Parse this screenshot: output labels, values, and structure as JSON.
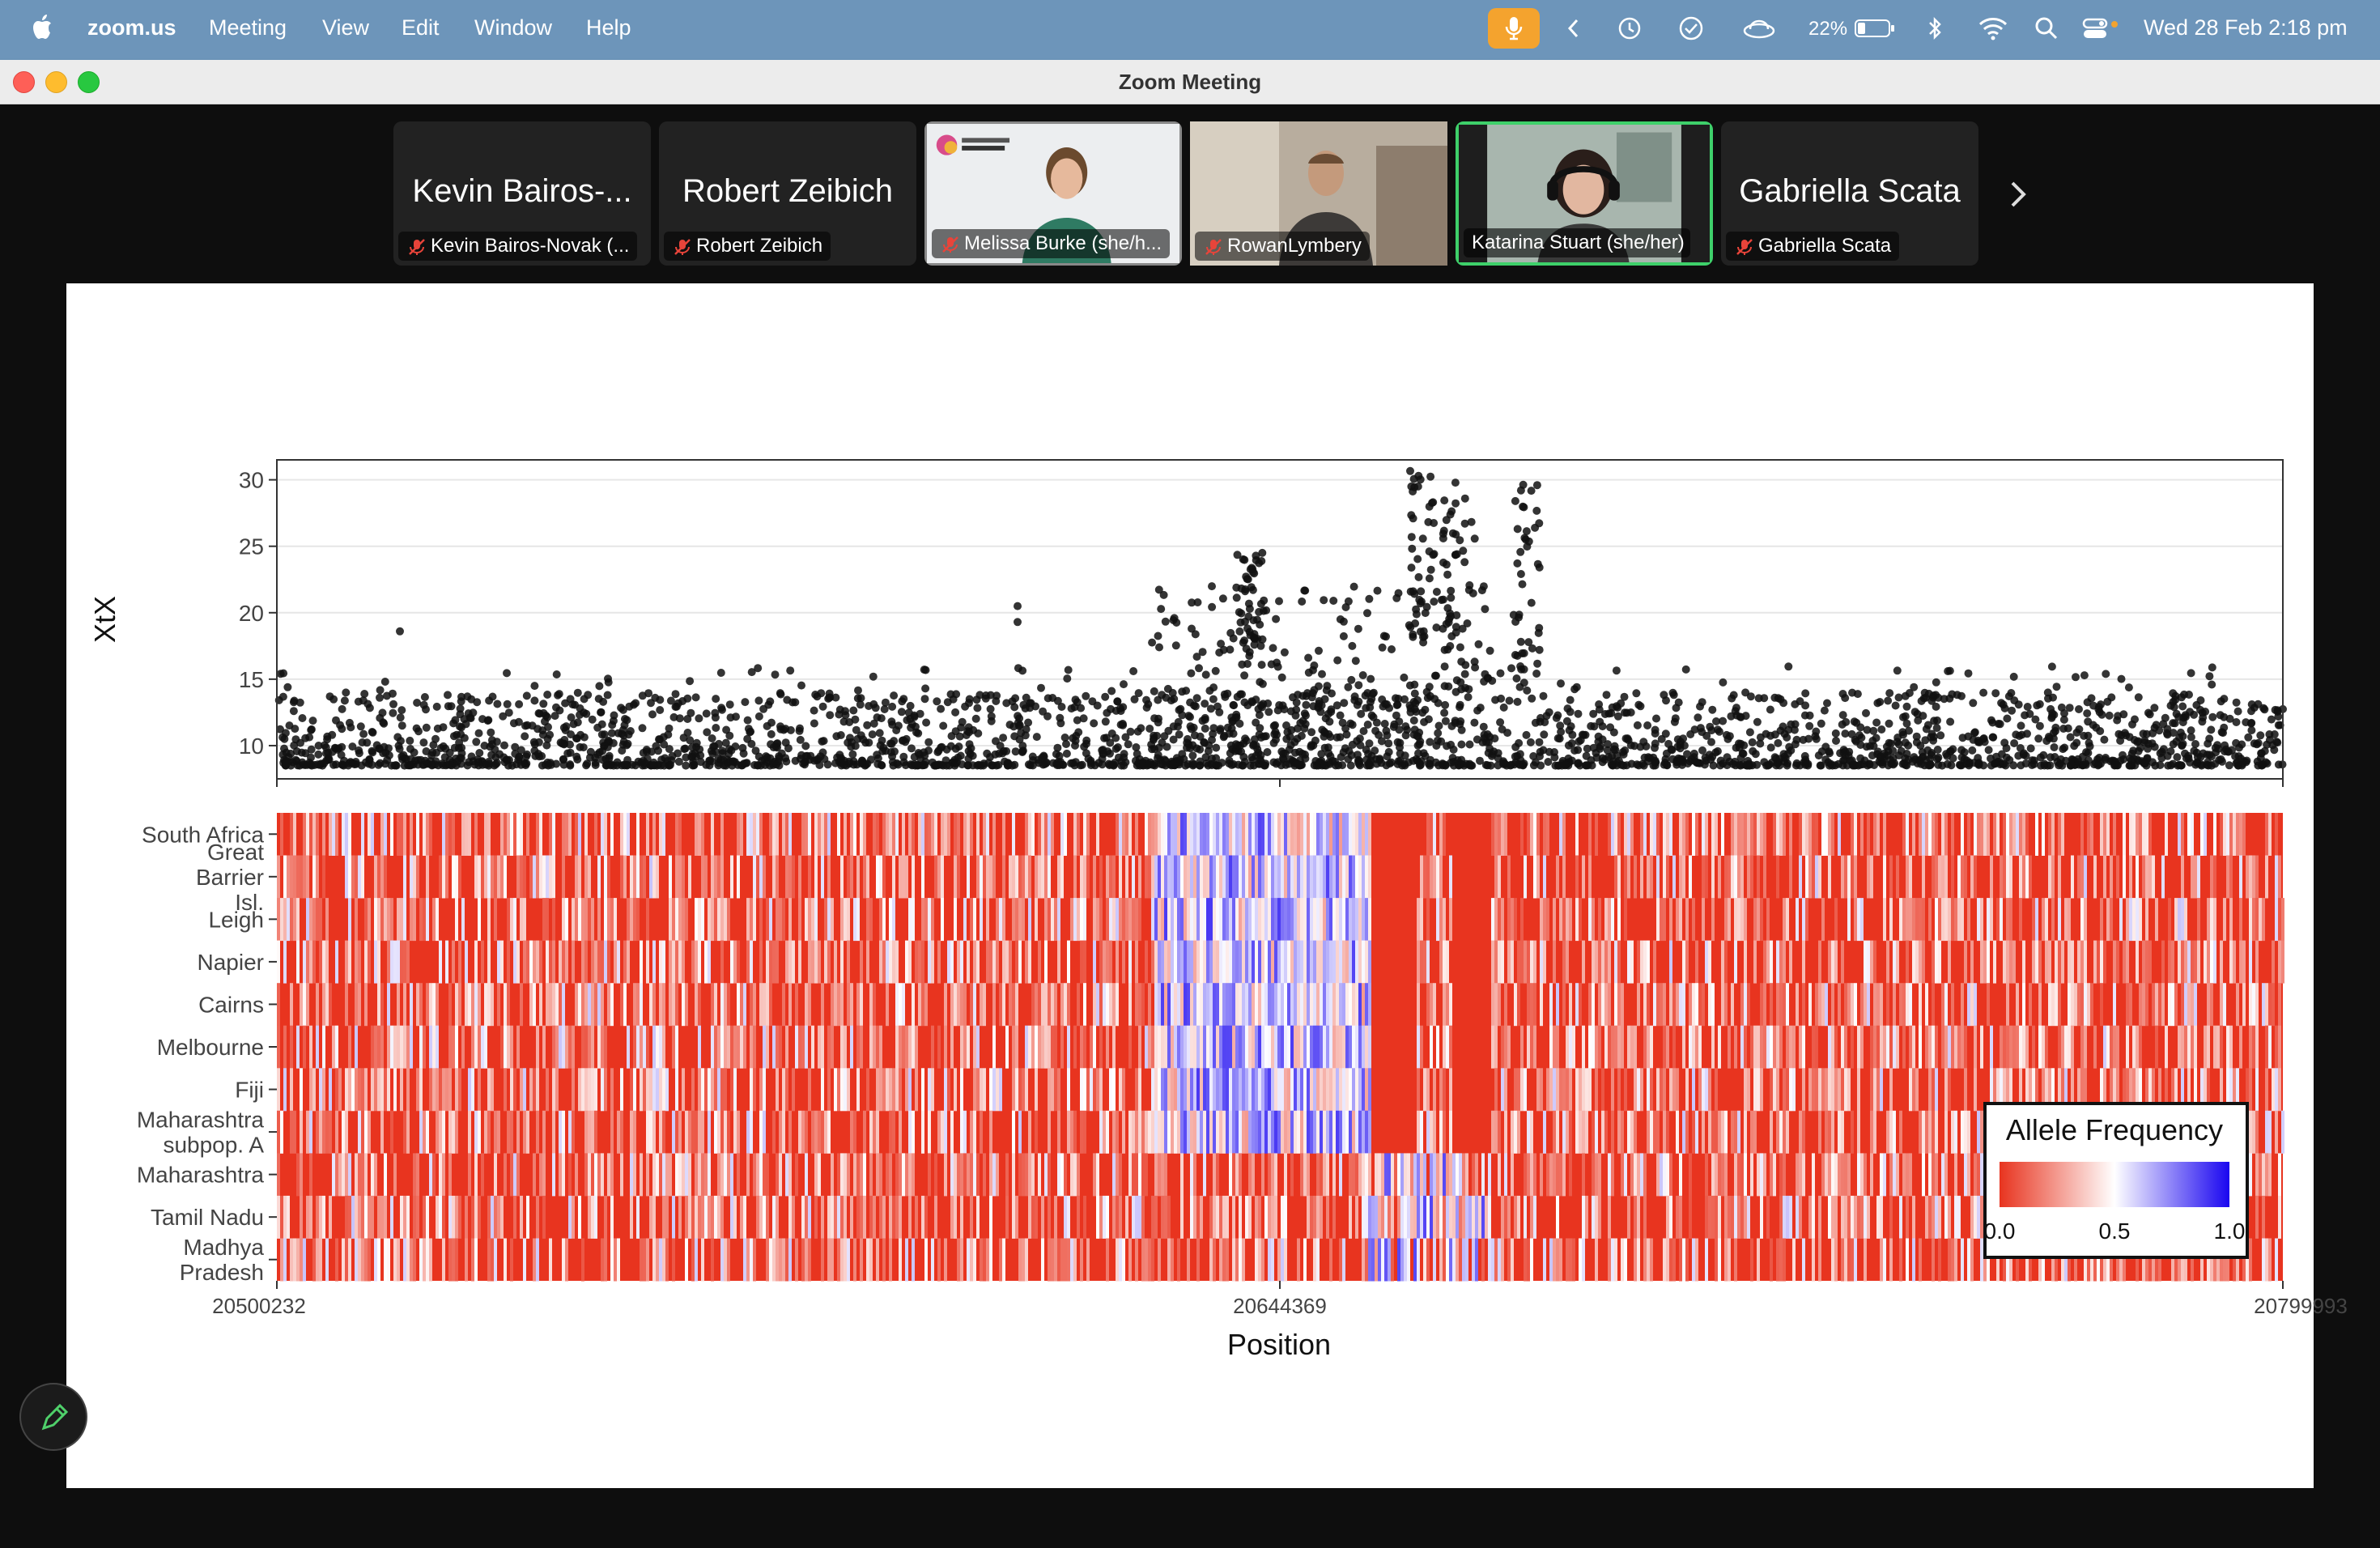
{
  "menubar": {
    "app_name": "zoom.us",
    "items": [
      "Meeting",
      "View",
      "Edit",
      "Window",
      "Help"
    ],
    "battery": "22%",
    "datetime": "Wed 28 Feb  2:18 pm"
  },
  "window": {
    "title": "Zoom Meeting"
  },
  "participants": [
    {
      "big_name": "Kevin Bairos-...",
      "caption": "Kevin Bairos-Novak (...",
      "video": false,
      "active": false
    },
    {
      "big_name": "Robert Zeibich",
      "caption": "Robert Zeibich",
      "video": false,
      "active": false
    },
    {
      "big_name": "",
      "caption": "Melissa Burke (she/h...",
      "video": true,
      "active": false
    },
    {
      "big_name": "",
      "caption": "RowanLymbery",
      "video": true,
      "active": false
    },
    {
      "big_name": "",
      "caption": "Katarina Stuart (she/her)",
      "video": true,
      "active": true
    },
    {
      "big_name": "Gabriella Scata",
      "caption": "Gabriella Scata",
      "video": false,
      "active": false
    }
  ],
  "chart_data": {
    "type": "scatter",
    "panels": [
      {
        "type": "scatter",
        "ylabel": "XtX",
        "yticks": [
          10,
          15,
          20,
          25,
          30
        ],
        "ylim": [
          7.5,
          31.5
        ],
        "xlim": [
          20500232,
          20799993
        ]
      },
      {
        "type": "heatmap",
        "rows": [
          "South Africa",
          "Great Barrier Isl.",
          "Leigh",
          "Napier",
          "Cairns",
          "Melbourne",
          "Fiji",
          "Maharashtra subpop. A",
          "Maharashtra",
          "Tamil Nadu",
          "Madhya Pradesh"
        ],
        "xlabel": "Position",
        "xticks": [
          "20500232",
          "20644369",
          "20799993"
        ],
        "xlim": [
          20500232,
          20799993
        ]
      }
    ],
    "legend": {
      "title": "Allele Frequency",
      "ticks": [
        "0.0",
        "0.5",
        "1.0"
      ],
      "colors": {
        "low": "#e8341f",
        "mid": "#ffffff",
        "high": "#1a06f0"
      },
      "position": "bottom-right"
    }
  },
  "colors": {
    "menubar": "#6d95ba",
    "mic_active": "#f4a32e",
    "active_speaker": "#3ed06a"
  }
}
